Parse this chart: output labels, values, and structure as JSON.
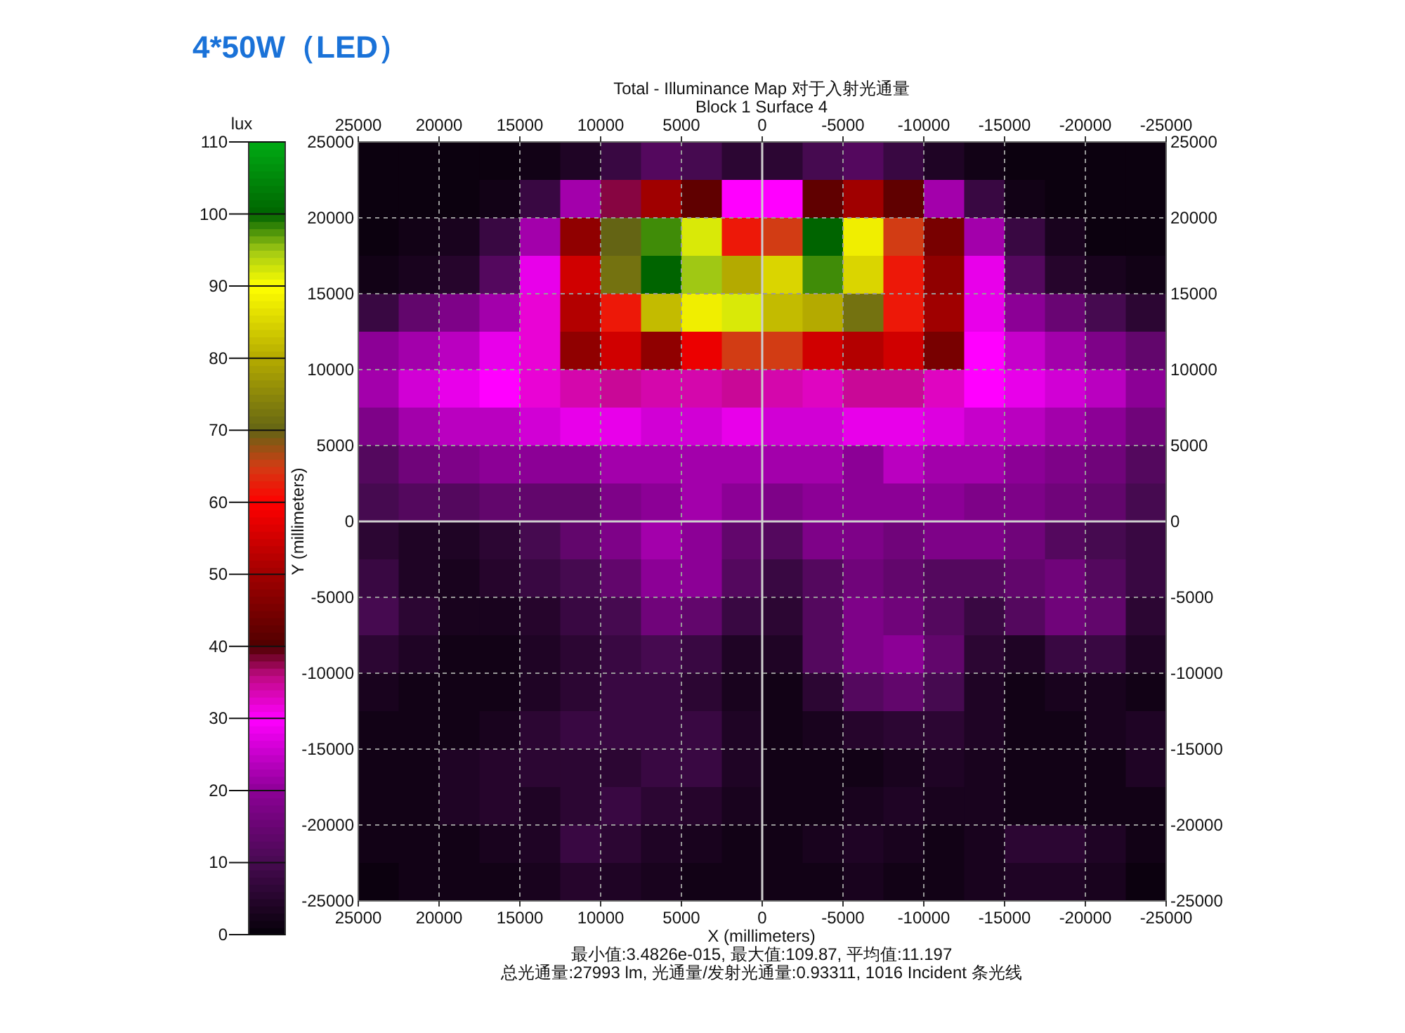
{
  "chart_data": {
    "type": "heatmap",
    "title": "4*50W（LED）",
    "subtitle": "Total - Illuminance Map 对于入射光通量",
    "annotations": [
      "Block 1 Surface 4",
      "最小值:3.4826e-015, 最大值:109.87, 平均值:11.197",
      "总光通量:27993 lm, 光通量/发射光通量:0.93311, 1016 Incident 条光线"
    ],
    "xlabel": "X (millimeters)",
    "ylabel": "Y (millimeters)",
    "clabel": "lux",
    "x": [
      23750,
      21250,
      18750,
      16250,
      13750,
      11250,
      8750,
      6250,
      3750,
      1250,
      -1250,
      -3750,
      -6250,
      -8750,
      -11250,
      -13750,
      -16250,
      -18750,
      -21250,
      -23750
    ],
    "y": [
      23750,
      21250,
      18750,
      16250,
      13750,
      11250,
      8750,
      6250,
      3750,
      1250,
      -1250,
      -3750,
      -6250,
      -8750,
      -11250,
      -13750,
      -16250,
      -18750,
      -21250,
      -23750
    ],
    "cells": [
      [
        1,
        1,
        1,
        1,
        2,
        4,
        8,
        12,
        10,
        6,
        6,
        10,
        12,
        8,
        4,
        2,
        1,
        1,
        1,
        1
      ],
      [
        1,
        1,
        1,
        2,
        8,
        22,
        38,
        50,
        42,
        30,
        30,
        42,
        50,
        42,
        22,
        8,
        2,
        1,
        1,
        1
      ],
      [
        1,
        2,
        3,
        8,
        22,
        48,
        70,
        98,
        92,
        62,
        65,
        100,
        88,
        65,
        45,
        22,
        8,
        3,
        1,
        1
      ],
      [
        2,
        3,
        5,
        12,
        28,
        55,
        72,
        100,
        95,
        80,
        85,
        98,
        85,
        62,
        48,
        28,
        12,
        5,
        3,
        2
      ],
      [
        8,
        14,
        18,
        22,
        32,
        52,
        62,
        82,
        88,
        92,
        82,
        80,
        72,
        62,
        50,
        28,
        20,
        15,
        10,
        6
      ],
      [
        20,
        22,
        24,
        28,
        32,
        48,
        55,
        48,
        58,
        65,
        65,
        55,
        52,
        55,
        45,
        30,
        25,
        22,
        18,
        14
      ],
      [
        22,
        26,
        28,
        30,
        32,
        34,
        35,
        34,
        34,
        35,
        34,
        33,
        35,
        35,
        33,
        30,
        28,
        26,
        24,
        20
      ],
      [
        18,
        22,
        24,
        24,
        26,
        28,
        28,
        26,
        26,
        28,
        26,
        26,
        28,
        28,
        27,
        25,
        24,
        22,
        20,
        16
      ],
      [
        12,
        16,
        18,
        20,
        20,
        20,
        22,
        22,
        22,
        22,
        22,
        22,
        20,
        24,
        22,
        22,
        20,
        18,
        16,
        12
      ],
      [
        10,
        12,
        12,
        14,
        14,
        14,
        18,
        20,
        22,
        20,
        18,
        20,
        20,
        20,
        20,
        18,
        18,
        16,
        14,
        10
      ],
      [
        6,
        4,
        4,
        6,
        10,
        14,
        18,
        22,
        20,
        14,
        12,
        18,
        18,
        16,
        18,
        18,
        16,
        12,
        10,
        8
      ],
      [
        8,
        4,
        3,
        5,
        8,
        10,
        14,
        20,
        20,
        12,
        8,
        12,
        16,
        14,
        12,
        12,
        14,
        16,
        12,
        8
      ],
      [
        10,
        6,
        3,
        3,
        5,
        8,
        10,
        16,
        14,
        8,
        6,
        12,
        18,
        16,
        12,
        8,
        12,
        16,
        14,
        6
      ],
      [
        6,
        4,
        2,
        2,
        4,
        6,
        8,
        10,
        8,
        4,
        4,
        12,
        18,
        20,
        14,
        6,
        4,
        8,
        8,
        4
      ],
      [
        3,
        2,
        2,
        2,
        4,
        6,
        8,
        8,
        6,
        3,
        2,
        6,
        12,
        14,
        10,
        4,
        2,
        3,
        3,
        2
      ],
      [
        2,
        2,
        2,
        3,
        6,
        8,
        8,
        8,
        8,
        4,
        2,
        3,
        5,
        6,
        6,
        4,
        2,
        2,
        3,
        4
      ],
      [
        2,
        2,
        4,
        5,
        6,
        6,
        6,
        8,
        8,
        4,
        2,
        2,
        2,
        3,
        4,
        3,
        2,
        2,
        2,
        4
      ],
      [
        2,
        2,
        4,
        5,
        4,
        6,
        8,
        6,
        5,
        3,
        2,
        2,
        3,
        4,
        3,
        3,
        2,
        2,
        2,
        2
      ],
      [
        2,
        2,
        2,
        3,
        4,
        8,
        6,
        4,
        3,
        2,
        2,
        3,
        4,
        3,
        2,
        3,
        6,
        6,
        4,
        2
      ],
      [
        1,
        2,
        2,
        2,
        3,
        5,
        4,
        3,
        2,
        2,
        2,
        2,
        3,
        2,
        2,
        3,
        4,
        4,
        3,
        1
      ]
    ],
    "clim": [
      0,
      110
    ],
    "cticks": [
      0,
      10,
      20,
      30,
      40,
      50,
      60,
      70,
      80,
      90,
      100,
      110
    ],
    "xlim": [
      25000,
      -25000
    ],
    "xticks": [
      25000,
      20000,
      15000,
      10000,
      5000,
      0,
      -5000,
      -10000,
      -15000,
      -20000,
      -25000
    ],
    "x2lim": [
      25000,
      -25000
    ],
    "x2ticks": [
      25000,
      20000,
      15000,
      10000,
      5000,
      0,
      -5000,
      -10000,
      -15000,
      -20000,
      -25000
    ],
    "ylim": [
      -25000,
      25000
    ],
    "yticks": [
      -25000,
      -20000,
      -15000,
      -10000,
      -5000,
      0,
      5000,
      10000,
      15000,
      20000,
      25000
    ],
    "y2lim": [
      -25000,
      25000
    ],
    "y2ticks": [
      -25000,
      -20000,
      -15000,
      -10000,
      -5000,
      0,
      5000,
      10000,
      15000,
      20000,
      25000
    ],
    "grid": true
  }
}
